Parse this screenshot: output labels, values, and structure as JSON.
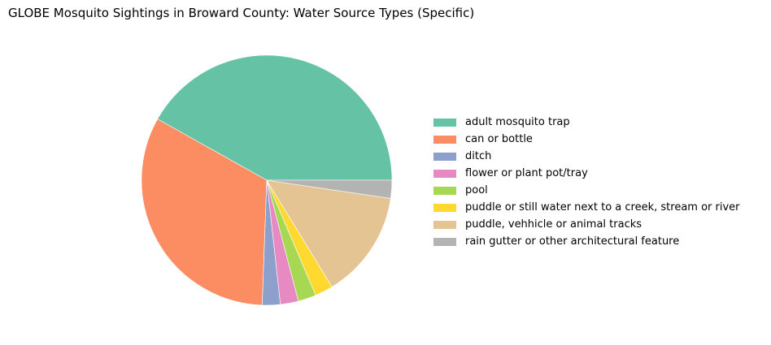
{
  "title": "GLOBE Mosquito Sightings in Broward County: Water Source Types (Specific)",
  "chart_data": {
    "type": "pie",
    "title": "GLOBE Mosquito Sightings in Broward County: Water Source Types (Specific)",
    "labels": [
      "adult mosquito trap",
      "can or bottle",
      "ditch",
      "flower or plant pot/tray",
      "pool",
      "puddle or still water next to a creek, stream or river",
      "puddle, vehhicle or animal tracks",
      "rain gutter or other architectural feature"
    ],
    "values": [
      18,
      14,
      1,
      1,
      1,
      1,
      6,
      1
    ],
    "colors": [
      "#66c2a5",
      "#fc8d62",
      "#8da0cb",
      "#e78ac3",
      "#a6d854",
      "#ffd92f",
      "#e5c494",
      "#b3b3b3"
    ],
    "start_angle_deg": 0,
    "direction": "counterclockwise",
    "legend": "right"
  }
}
